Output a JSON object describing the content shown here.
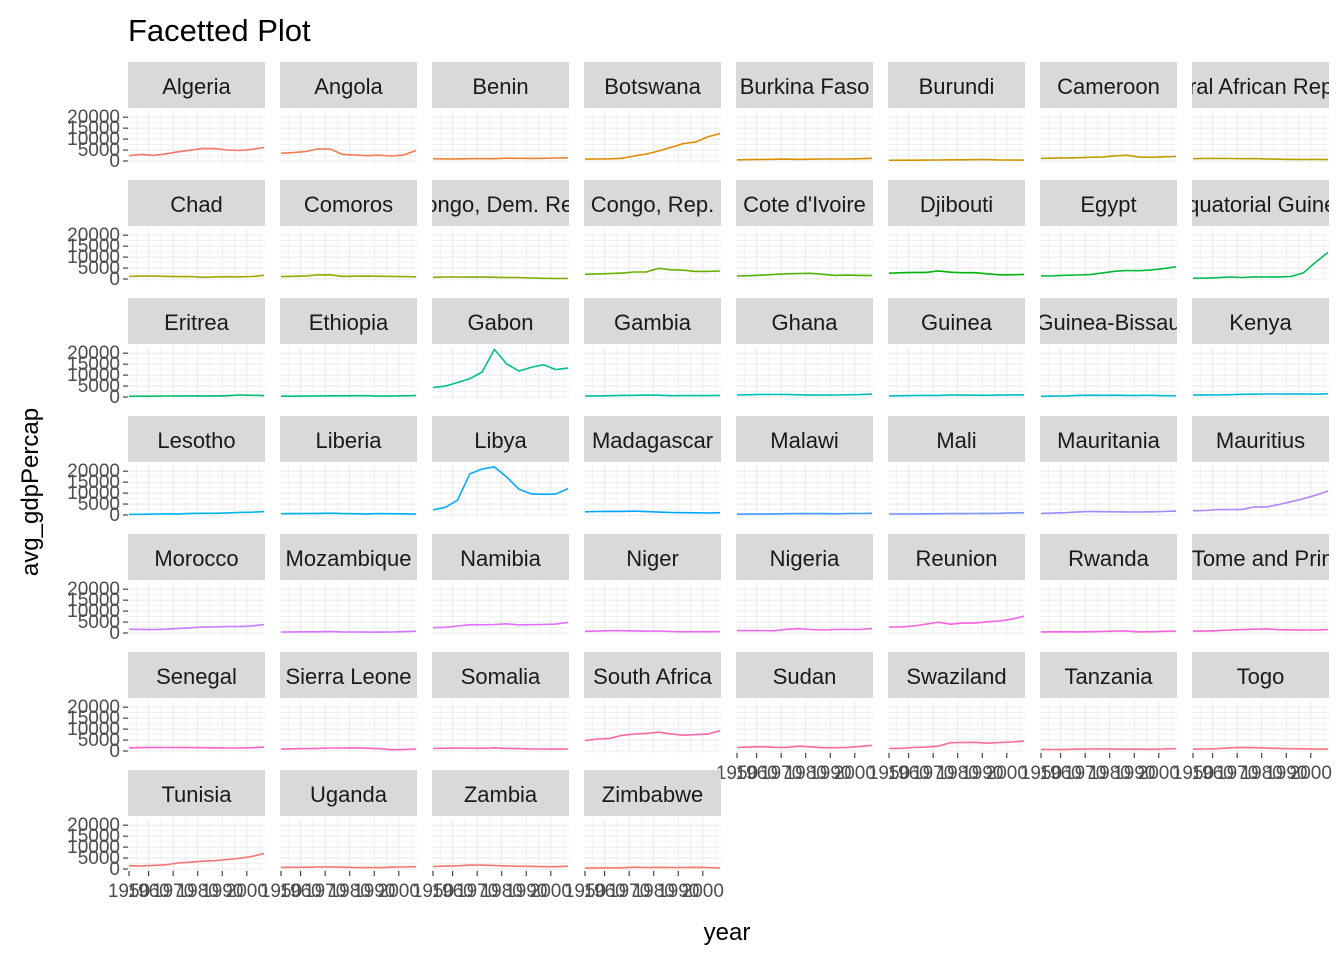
{
  "chart_data": {
    "type": "line",
    "title": "Facetted Plot",
    "xlabel": "year",
    "ylabel": "avg_gdpPercap",
    "x": [
      1952,
      1957,
      1962,
      1967,
      1972,
      1977,
      1982,
      1987,
      1992,
      1997,
      2002,
      2007
    ],
    "xlim": [
      1952,
      2007
    ],
    "ylim": [
      0,
      21000
    ],
    "yticks": [
      0,
      5000,
      10000,
      15000,
      20000
    ],
    "yticklabels": [
      "0",
      "5000",
      "10000",
      "15000",
      "20000"
    ],
    "xticks": [
      1950,
      1960,
      1970,
      1980,
      1990,
      2000
    ],
    "xticklabels": [
      "1950",
      "1960",
      "1970",
      "1980",
      "1990",
      "2000"
    ],
    "ncol": 8,
    "grid": true,
    "legend": "none",
    "series": [
      {
        "name": "Algeria",
        "color": "#F8766D",
        "values": [
          2449,
          3014,
          2551,
          3247,
          4183,
          4910,
          5745,
          5681,
          5023,
          4797,
          5288,
          6223
        ]
      },
      {
        "name": "Angola",
        "color": "#F27D52",
        "values": [
          3521,
          3828,
          4269,
          5523,
          5473,
          3009,
          2757,
          2430,
          2628,
          2277,
          2773,
          4797
        ]
      },
      {
        "name": "Benin",
        "color": "#EA8331",
        "values": [
          1063,
          960,
          949,
          1036,
          1086,
          1029,
          1278,
          1226,
          1191,
          1233,
          1373,
          1441
        ]
      },
      {
        "name": "Botswana",
        "color": "#E38900",
        "values": [
          851,
          918,
          983,
          1215,
          2264,
          3215,
          4551,
          6206,
          7954,
          8647,
          11004,
          12570
        ]
      },
      {
        "name": "Burkina Faso",
        "color": "#D89000",
        "values": [
          543,
          617,
          722,
          795,
          855,
          743,
          807,
          912,
          932,
          946,
          1038,
          1217
        ]
      },
      {
        "name": "Burundi",
        "color": "#CD9600",
        "values": [
          339,
          380,
          355,
          413,
          464,
          556,
          560,
          622,
          632,
          463,
          446,
          430
        ]
      },
      {
        "name": "Cameroon",
        "color": "#C09B00",
        "values": [
          1173,
          1313,
          1400,
          1508,
          1684,
          1783,
          2368,
          2603,
          1793,
          1694,
          1934,
          2042
        ]
      },
      {
        "name": "Central African Republic",
        "color": "#B2A100",
        "values": [
          1071,
          1191,
          1193,
          1136,
          1070,
          1109,
          957,
          844,
          748,
          741,
          738,
          706
        ]
      },
      {
        "name": "Chad",
        "color": "#A3A500",
        "values": [
          1179,
          1308,
          1390,
          1197,
          1104,
          1134,
          798,
          953,
          1058,
          1005,
          1156,
          1704
        ]
      },
      {
        "name": "Comoros",
        "color": "#93AA00",
        "values": [
          1103,
          1211,
          1407,
          1876,
          1938,
          1173,
          1267,
          1315,
          1247,
          1174,
          1076,
          986
        ]
      },
      {
        "name": "Congo, Dem. Rep.",
        "color": "#7FAE00",
        "values": [
          781,
          906,
          896,
          862,
          905,
          796,
          674,
          672,
          458,
          313,
          241,
          278
        ]
      },
      {
        "name": "Congo, Rep.",
        "color": "#68B100",
        "values": [
          2126,
          2316,
          2465,
          2677,
          3213,
          3260,
          4879,
          4201,
          4016,
          3485,
          3484,
          3633
        ]
      },
      {
        "name": "Cote d'Ivoire",
        "color": "#4BB400",
        "values": [
          1389,
          1500,
          1729,
          2052,
          2378,
          2518,
          2603,
          2157,
          1648,
          1786,
          1649,
          1545
        ]
      },
      {
        "name": "Djibouti",
        "color": "#00B70C",
        "values": [
          2670,
          2865,
          3021,
          3020,
          3694,
          3082,
          2880,
          2880,
          2377,
          1895,
          1909,
          2082
        ]
      },
      {
        "name": "Egypt",
        "color": "#00BA38",
        "values": [
          1419,
          1459,
          1693,
          1815,
          2024,
          2785,
          3504,
          3885,
          3795,
          4173,
          4755,
          5581
        ]
      },
      {
        "name": "Equatorial Guinea",
        "color": "#00BC56",
        "values": [
          376,
          426,
          582,
          915,
          672,
          958,
          927,
          966,
          1132,
          2815,
          7703,
          12154
        ]
      },
      {
        "name": "Eritrea",
        "color": "#00BE6C",
        "values": [
          329,
          344,
          381,
          468,
          514,
          505,
          524,
          521,
          582,
          913,
          765,
          641
        ]
      },
      {
        "name": "Ethiopia",
        "color": "#00C07F",
        "values": [
          362,
          379,
          420,
          516,
          566,
          556,
          577,
          573,
          421,
          516,
          530,
          691
        ]
      },
      {
        "name": "Gabon",
        "color": "#00C091",
        "values": [
          4293,
          4976,
          6632,
          8359,
          11402,
          21746,
          15113,
          11864,
          13522,
          14723,
          12521,
          13206
        ]
      },
      {
        "name": "Gambia",
        "color": "#00C1A2",
        "values": [
          485,
          521,
          599,
          734,
          757,
          884,
          835,
          612,
          666,
          653,
          660,
          753
        ]
      },
      {
        "name": "Ghana",
        "color": "#00C0B2",
        "values": [
          911,
          1044,
          1190,
          1126,
          1179,
          993,
          876,
          847,
          925,
          1005,
          1112,
          1328
        ]
      },
      {
        "name": "Guinea",
        "color": "#00BFC2",
        "values": [
          510,
          576,
          686,
          708,
          741,
          874,
          857,
          805,
          795,
          870,
          945,
          943
        ]
      },
      {
        "name": "Guinea-Bissau",
        "color": "#00BCD0",
        "values": [
          300,
          432,
          522,
          715,
          820,
          765,
          838,
          736,
          745,
          797,
          575,
          580
        ]
      },
      {
        "name": "Kenya",
        "color": "#00B9DE",
        "values": [
          853,
          944,
          897,
          1057,
          1222,
          1268,
          1348,
          1361,
          1341,
          1360,
          1288,
          1463
        ]
      },
      {
        "name": "Lesotho",
        "color": "#00B5EA",
        "values": [
          299,
          336,
          411,
          498,
          497,
          745,
          797,
          773,
          977,
          1186,
          1275,
          1569
        ]
      },
      {
        "name": "Liberia",
        "color": "#00B0F6",
        "values": [
          575,
          621,
          634,
          714,
          803,
          640,
          573,
          506,
          636,
          609,
          531,
          415
        ]
      },
      {
        "name": "Libya",
        "color": "#00AAFD",
        "values": [
          2388,
          3448,
          6757,
          18773,
          21011,
          21951,
          17364,
          11770,
          9640,
          9467,
          9535,
          12057
        ]
      },
      {
        "name": "Madagascar",
        "color": "#00A3FF",
        "values": [
          1443,
          1589,
          1643,
          1634,
          1749,
          1544,
          1302,
          1155,
          1040,
          986,
          894,
          1045
        ]
      },
      {
        "name": "Malawi",
        "color": "#419CFF",
        "values": [
          369,
          416,
          428,
          496,
          584,
          663,
          633,
          635,
          563,
          692,
          665,
          759
        ]
      },
      {
        "name": "Mali",
        "color": "#7B93FF",
        "values": [
          452,
          490,
          497,
          545,
          581,
          686,
          619,
          684,
          740,
          790,
          952,
          1042
        ]
      },
      {
        "name": "Mauritania",
        "color": "#9A8BFF",
        "values": [
          744,
          847,
          1055,
          1422,
          1586,
          1497,
          1481,
          1421,
          1361,
          1483,
          1579,
          1803
        ]
      },
      {
        "name": "Mauritius",
        "color": "#B185FF",
        "values": [
          1968,
          2034,
          2530,
          2475,
          2575,
          3710,
          3688,
          4783,
          6058,
          7426,
          9021,
          10957
        ]
      },
      {
        "name": "Morocco",
        "color": "#C37DFF",
        "values": [
          1688,
          1643,
          1567,
          1712,
          2006,
          2372,
          2703,
          2756,
          2948,
          2982,
          3259,
          3820
        ]
      },
      {
        "name": "Mozambique",
        "color": "#D276FF",
        "values": [
          469,
          496,
          556,
          566,
          725,
          502,
          462,
          390,
          410,
          473,
          634,
          824
        ]
      },
      {
        "name": "Namibia",
        "color": "#DE71F9",
        "values": [
          2424,
          2621,
          3173,
          3793,
          3747,
          3876,
          4191,
          3694,
          3805,
          3899,
          4072,
          4811
        ]
      },
      {
        "name": "Niger",
        "color": "#E76BF3",
        "values": [
          762,
          860,
          1072,
          1054,
          954,
          808,
          909,
          668,
          581,
          580,
          601,
          620
        ]
      },
      {
        "name": "Nigeria",
        "color": "#EF67EB",
        "values": [
          1077,
          1101,
          1151,
          1015,
          1698,
          1982,
          1577,
          1385,
          1620,
          1625,
          1615,
          2014
        ]
      },
      {
        "name": "Reunion",
        "color": "#F564E3",
        "values": [
          2719,
          2770,
          3174,
          4022,
          4941,
          4022,
          4509,
          4512,
          5103,
          5471,
          6321,
          7670
        ]
      },
      {
        "name": "Rwanda",
        "color": "#FA62DB",
        "values": [
          493,
          540,
          597,
          511,
          591,
          670,
          882,
          848,
          496,
          589,
          786,
          863
        ]
      },
      {
        "name": "Sao Tome and Principe",
        "color": "#FD61D1",
        "values": [
          880,
          861,
          1072,
          1385,
          1533,
          1738,
          1890,
          1517,
          1429,
          1339,
          1353,
          1598
        ]
      },
      {
        "name": "Senegal",
        "color": "#FF61C7",
        "values": [
          1450,
          1568,
          1654,
          1613,
          1597,
          1562,
          1518,
          1441,
          1367,
          1392,
          1520,
          1712
        ]
      },
      {
        "name": "Sierra Leone",
        "color": "#FF62BC",
        "values": [
          879,
          1004,
          1116,
          1207,
          1353,
          1349,
          1465,
          1295,
          1069,
          575,
          699,
          863
        ]
      },
      {
        "name": "Somalia",
        "color": "#FF64B0",
        "values": [
          1136,
          1258,
          1369,
          1285,
          1254,
          1450,
          1177,
          1094,
          927,
          930,
          882,
          926
        ]
      },
      {
        "name": "South Africa",
        "color": "#FF67A4",
        "values": [
          4725,
          5487,
          5769,
          7114,
          7765,
          8028,
          8568,
          7826,
          7225,
          7479,
          7711,
          9270
        ]
      },
      {
        "name": "Sudan",
        "color": "#FF6A98",
        "values": [
          1615,
          1770,
          1959,
          1687,
          1659,
          2202,
          1895,
          1507,
          1493,
          1632,
          1993,
          2602
        ]
      },
      {
        "name": "Swaziland",
        "color": "#FF6C91",
        "values": [
          1148,
          1244,
          1597,
          1772,
          2203,
          3781,
          3895,
          3984,
          3553,
          3876,
          4128,
          4513
        ]
      },
      {
        "name": "Tanzania",
        "color": "#FF6E8A",
        "values": [
          717,
          699,
          722,
          848,
          916,
          962,
          875,
          831,
          825,
          789,
          899,
          1107
        ]
      },
      {
        "name": "Togo",
        "color": "#FC717F",
        "values": [
          860,
          926,
          1068,
          1477,
          1649,
          1533,
          1344,
          1203,
          1034,
          982,
          886,
          883
        ]
      },
      {
        "name": "Tunisia",
        "color": "#FA7476",
        "values": [
          1468,
          1395,
          1660,
          1932,
          2753,
          3120,
          3561,
          3810,
          4333,
          4877,
          5723,
          7093
        ]
      },
      {
        "name": "Uganda",
        "color": "#F77571",
        "values": [
          735,
          774,
          768,
          909,
          950,
          844,
          683,
          618,
          644,
          817,
          928,
          1056
        ]
      },
      {
        "name": "Zambia",
        "color": "#F8766D",
        "values": [
          1147,
          1312,
          1453,
          1777,
          1773,
          1589,
          1409,
          1213,
          1211,
          1071,
          1071,
          1271
        ]
      },
      {
        "name": "Zimbabwe",
        "color": "#F8766D",
        "values": [
          406,
          518,
          527,
          570,
          799,
          686,
          788,
          706,
          693,
          792,
          672,
          470
        ]
      }
    ]
  }
}
